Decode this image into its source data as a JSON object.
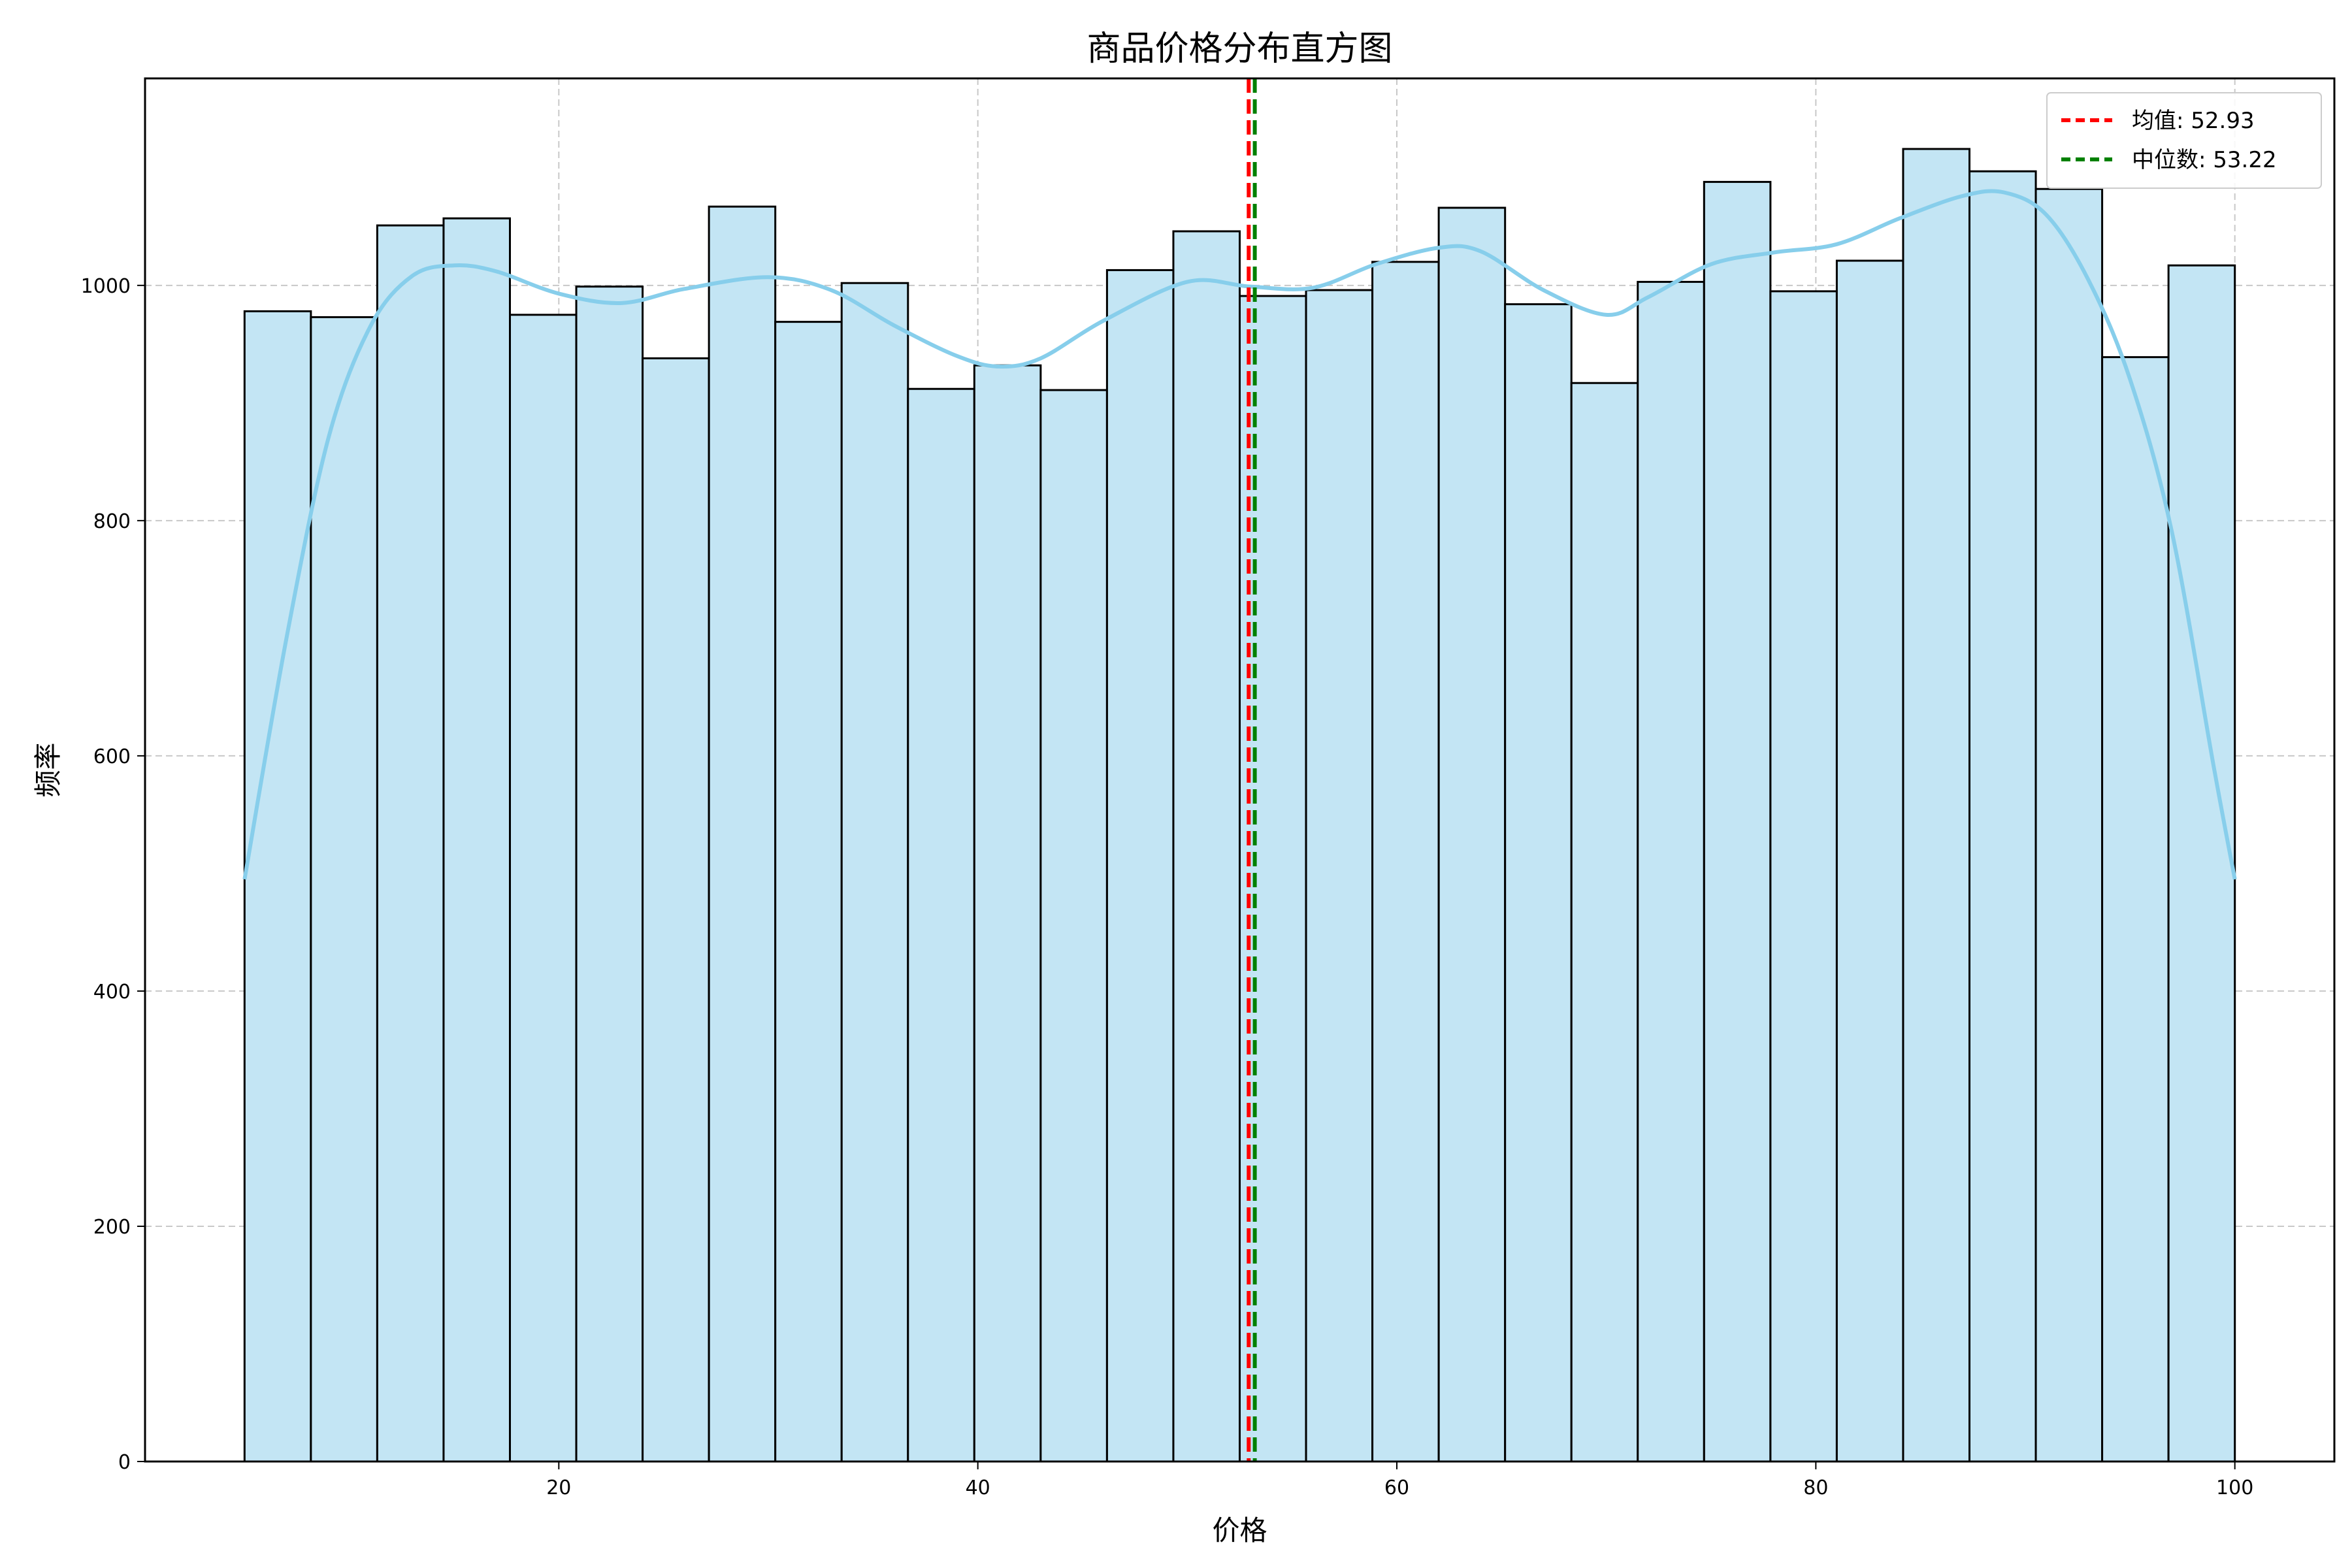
{
  "chart_data": {
    "type": "bar",
    "subtype": "histogram",
    "title": "商品价格分布直方图",
    "xlabel": "价格",
    "ylabel": "频率",
    "xlim": [
      0.25,
      104.75
    ],
    "ylim": [
      0,
      1176
    ],
    "xticks": [
      20,
      40,
      60,
      80,
      100
    ],
    "yticks": [
      0,
      200,
      400,
      600,
      800,
      1000,
      1200
    ],
    "grid": true,
    "legend_position": "top-right",
    "colors": {
      "bar_fill": "#c3e5f4",
      "bar_edge": "#000000",
      "kde_line": "#87ceeb",
      "mean_line": "#ff0000",
      "median_line": "#008000",
      "grid": "#c8c8c8"
    },
    "bins": {
      "start": 5.0,
      "end": 100.0,
      "count": 30,
      "values": [
        978,
        973,
        1051,
        1057,
        975,
        999,
        938,
        1067,
        969,
        1002,
        912,
        932,
        911,
        1013,
        1046,
        991,
        996,
        1020,
        1066,
        984,
        917,
        1003,
        1088,
        995,
        1021,
        1116,
        1097,
        1082,
        939,
        1017
      ]
    },
    "kde": {
      "name": "density",
      "x": [
        5,
        7,
        9,
        11,
        13,
        15,
        17,
        20,
        23,
        26,
        30,
        33,
        36,
        39,
        41,
        43,
        46,
        50,
        53,
        56,
        59,
        62,
        64,
        67,
        70,
        72,
        75,
        78,
        81,
        84,
        87,
        89,
        91,
        93,
        95,
        97,
        99,
        100
      ],
      "y": [
        495,
        700,
        870,
        965,
        1008,
        1017,
        1012,
        993,
        985,
        997,
        1007,
        996,
        966,
        940,
        931,
        938,
        970,
        1003,
        999,
        998,
        1018,
        1032,
        1029,
        996,
        975,
        990,
        1018,
        1028,
        1035,
        1057,
        1076,
        1079,
        1060,
        1005,
        920,
        790,
        590,
        495
      ]
    },
    "reference_lines": [
      {
        "name": "均值: 52.93",
        "x": 52.93,
        "style": "dashed",
        "color": "#ff0000"
      },
      {
        "name": "中位数: 53.22",
        "x": 53.22,
        "style": "dashed",
        "color": "#008000"
      }
    ]
  }
}
